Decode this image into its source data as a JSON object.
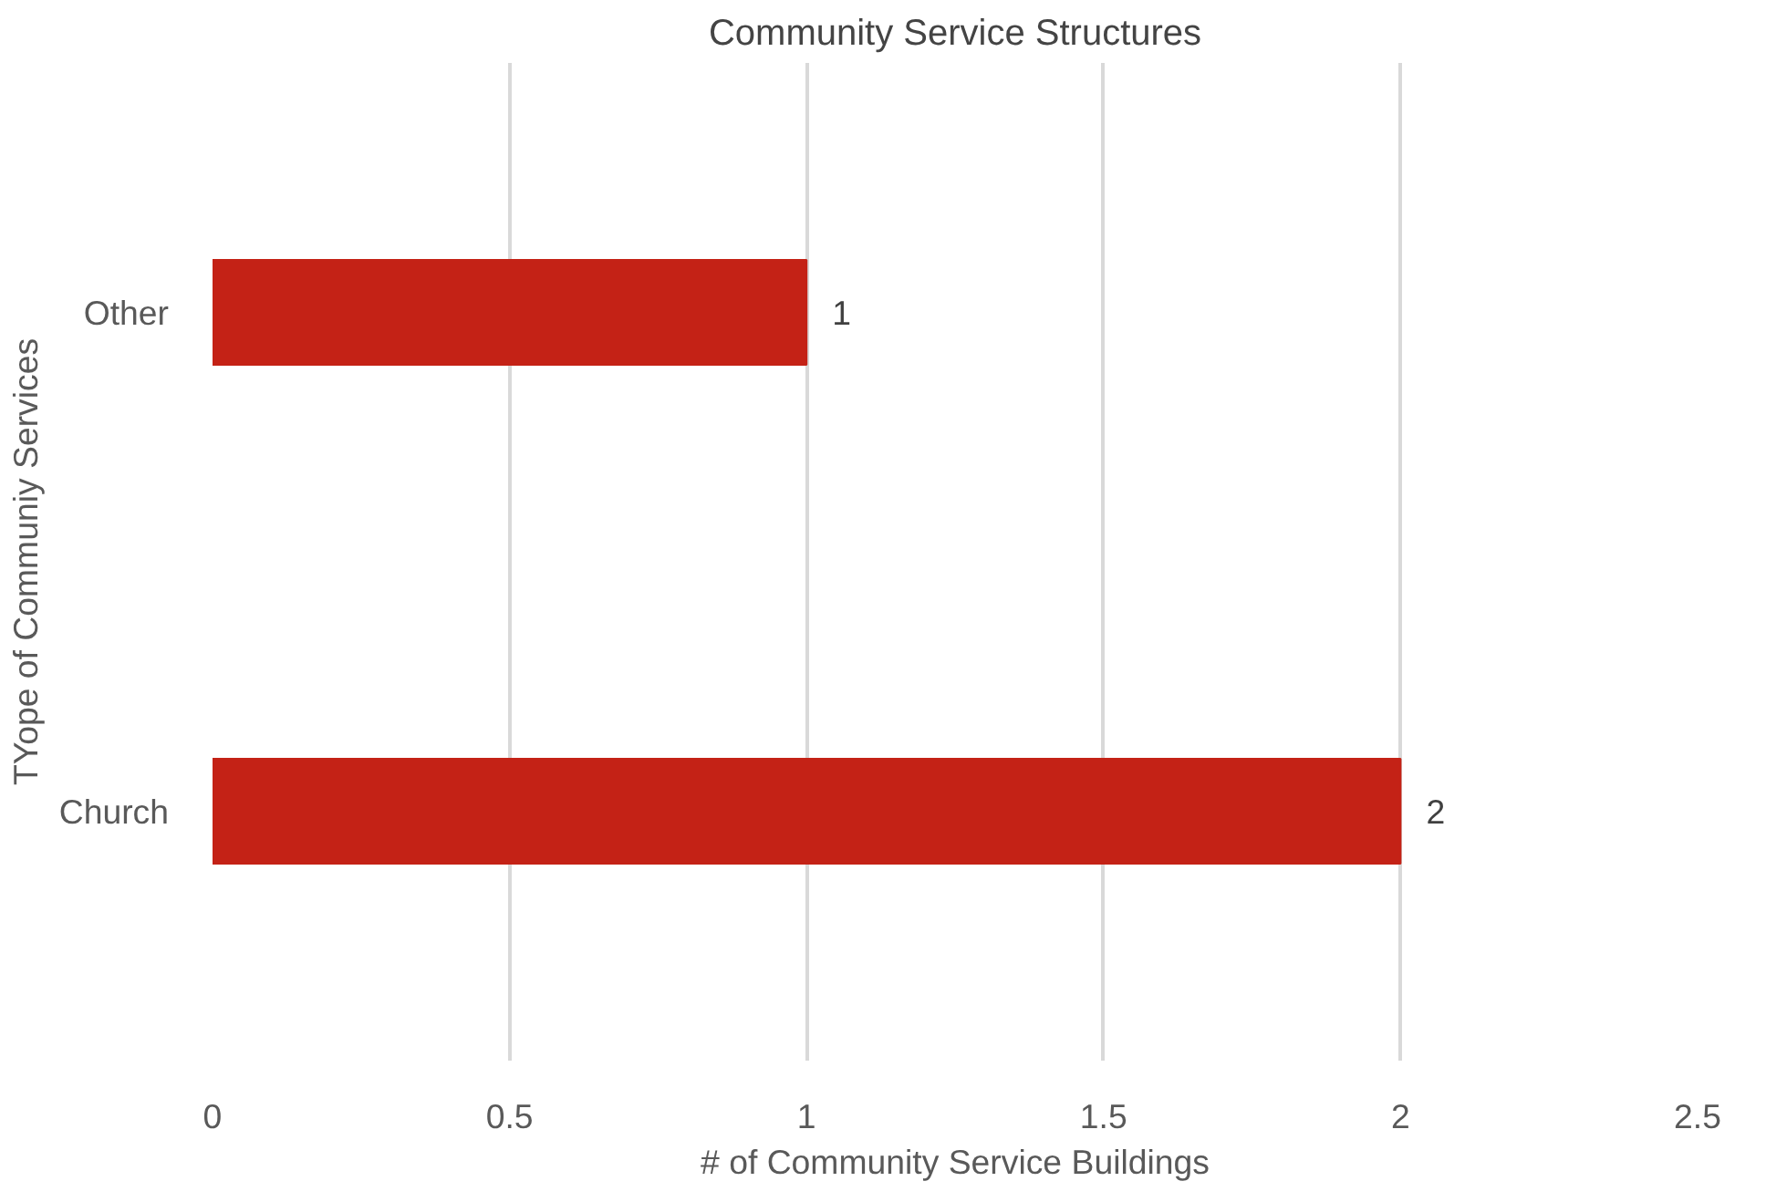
{
  "chart_data": {
    "type": "bar",
    "orientation": "horizontal",
    "title": "Community Service Structures",
    "xlabel": "# of Community Service Buildings",
    "ylabel": "TYope of Communiy Services",
    "categories": [
      "Other",
      "Church"
    ],
    "values": [
      1,
      2
    ],
    "color": "#c42216",
    "xlim": [
      0,
      2.5
    ],
    "xticks": [
      0,
      0.5,
      1,
      1.5,
      2,
      2.5
    ],
    "grid": "x",
    "data_labels": true
  }
}
